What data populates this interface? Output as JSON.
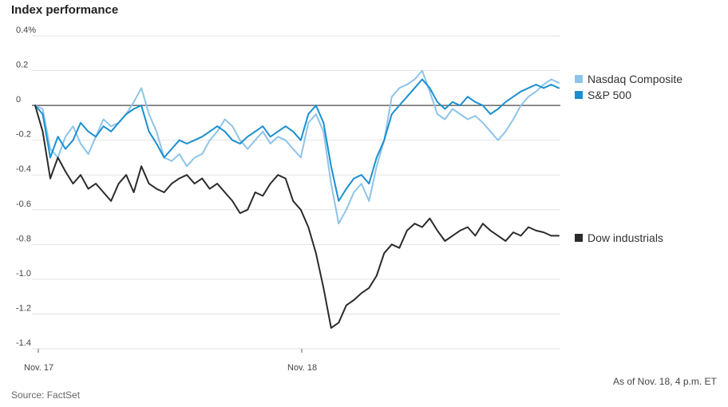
{
  "title": "Index performance",
  "source": "Source: FactSet",
  "as_of": "As of Nov. 18, 4 p.m. ET",
  "chart_data": {
    "type": "line",
    "title": "Index performance",
    "xlabel": "",
    "ylabel": "",
    "x_ticks": [
      "Nov. 17",
      "Nov. 18"
    ],
    "y_ticks": [
      "0.4%",
      "0.2",
      "0",
      "-0.2",
      "-0.4",
      "-0.6",
      "-0.8",
      "-1.0",
      "-1.2",
      "-1.4"
    ],
    "ylim": [
      -1.4,
      0.4
    ],
    "grid": true,
    "legend_position": "right",
    "series": [
      {
        "name": "Nasdaq Composite",
        "color": "#8ec4e8",
        "values": [
          0,
          -0.02,
          -0.25,
          -0.3,
          -0.18,
          -0.12,
          -0.22,
          -0.28,
          -0.18,
          -0.08,
          -0.12,
          -0.1,
          -0.05,
          0.02,
          0.1,
          -0.05,
          -0.15,
          -0.3,
          -0.32,
          -0.28,
          -0.35,
          -0.3,
          -0.28,
          -0.2,
          -0.15,
          -0.08,
          -0.12,
          -0.2,
          -0.25,
          -0.2,
          -0.15,
          -0.22,
          -0.18,
          -0.2,
          -0.25,
          -0.3,
          -0.1,
          -0.05,
          -0.15,
          -0.45,
          -0.68,
          -0.6,
          -0.5,
          -0.45,
          -0.55,
          -0.35,
          -0.2,
          0.05,
          0.1,
          0.12,
          0.15,
          0.2,
          0.08,
          -0.05,
          -0.08,
          -0.02,
          -0.05,
          -0.08,
          -0.06,
          -0.1,
          -0.15,
          -0.2,
          -0.15,
          -0.08,
          0.0,
          0.05,
          0.08,
          0.12,
          0.15,
          0.13
        ]
      },
      {
        "name": "S&P 500",
        "color": "#1a8fd0",
        "values": [
          0,
          -0.05,
          -0.3,
          -0.18,
          -0.25,
          -0.2,
          -0.1,
          -0.15,
          -0.18,
          -0.12,
          -0.15,
          -0.1,
          -0.05,
          -0.02,
          0.0,
          -0.15,
          -0.22,
          -0.3,
          -0.25,
          -0.2,
          -0.22,
          -0.2,
          -0.18,
          -0.15,
          -0.12,
          -0.15,
          -0.2,
          -0.22,
          -0.18,
          -0.15,
          -0.12,
          -0.18,
          -0.15,
          -0.12,
          -0.15,
          -0.2,
          -0.05,
          0.0,
          -0.1,
          -0.35,
          -0.55,
          -0.48,
          -0.42,
          -0.4,
          -0.45,
          -0.3,
          -0.2,
          -0.05,
          0.0,
          0.05,
          0.1,
          0.15,
          0.1,
          0.02,
          -0.02,
          0.02,
          0.0,
          0.05,
          0.02,
          0.0,
          -0.05,
          -0.02,
          0.02,
          0.05,
          0.08,
          0.1,
          0.12,
          0.1,
          0.12,
          0.1
        ]
      },
      {
        "name": "Dow industrials",
        "color": "#2b2b2b",
        "values": [
          0,
          -0.15,
          -0.42,
          -0.3,
          -0.38,
          -0.45,
          -0.4,
          -0.48,
          -0.45,
          -0.5,
          -0.55,
          -0.45,
          -0.4,
          -0.5,
          -0.35,
          -0.45,
          -0.48,
          -0.5,
          -0.45,
          -0.42,
          -0.4,
          -0.45,
          -0.42,
          -0.48,
          -0.45,
          -0.5,
          -0.55,
          -0.62,
          -0.6,
          -0.5,
          -0.52,
          -0.45,
          -0.4,
          -0.42,
          -0.55,
          -0.6,
          -0.7,
          -0.85,
          -1.05,
          -1.28,
          -1.25,
          -1.15,
          -1.12,
          -1.08,
          -1.05,
          -0.98,
          -0.85,
          -0.8,
          -0.82,
          -0.72,
          -0.68,
          -0.7,
          -0.65,
          -0.72,
          -0.78,
          -0.75,
          -0.72,
          -0.7,
          -0.75,
          -0.68,
          -0.72,
          -0.75,
          -0.78,
          -0.73,
          -0.75,
          -0.7,
          -0.72,
          -0.73,
          -0.75,
          -0.75
        ]
      }
    ]
  }
}
